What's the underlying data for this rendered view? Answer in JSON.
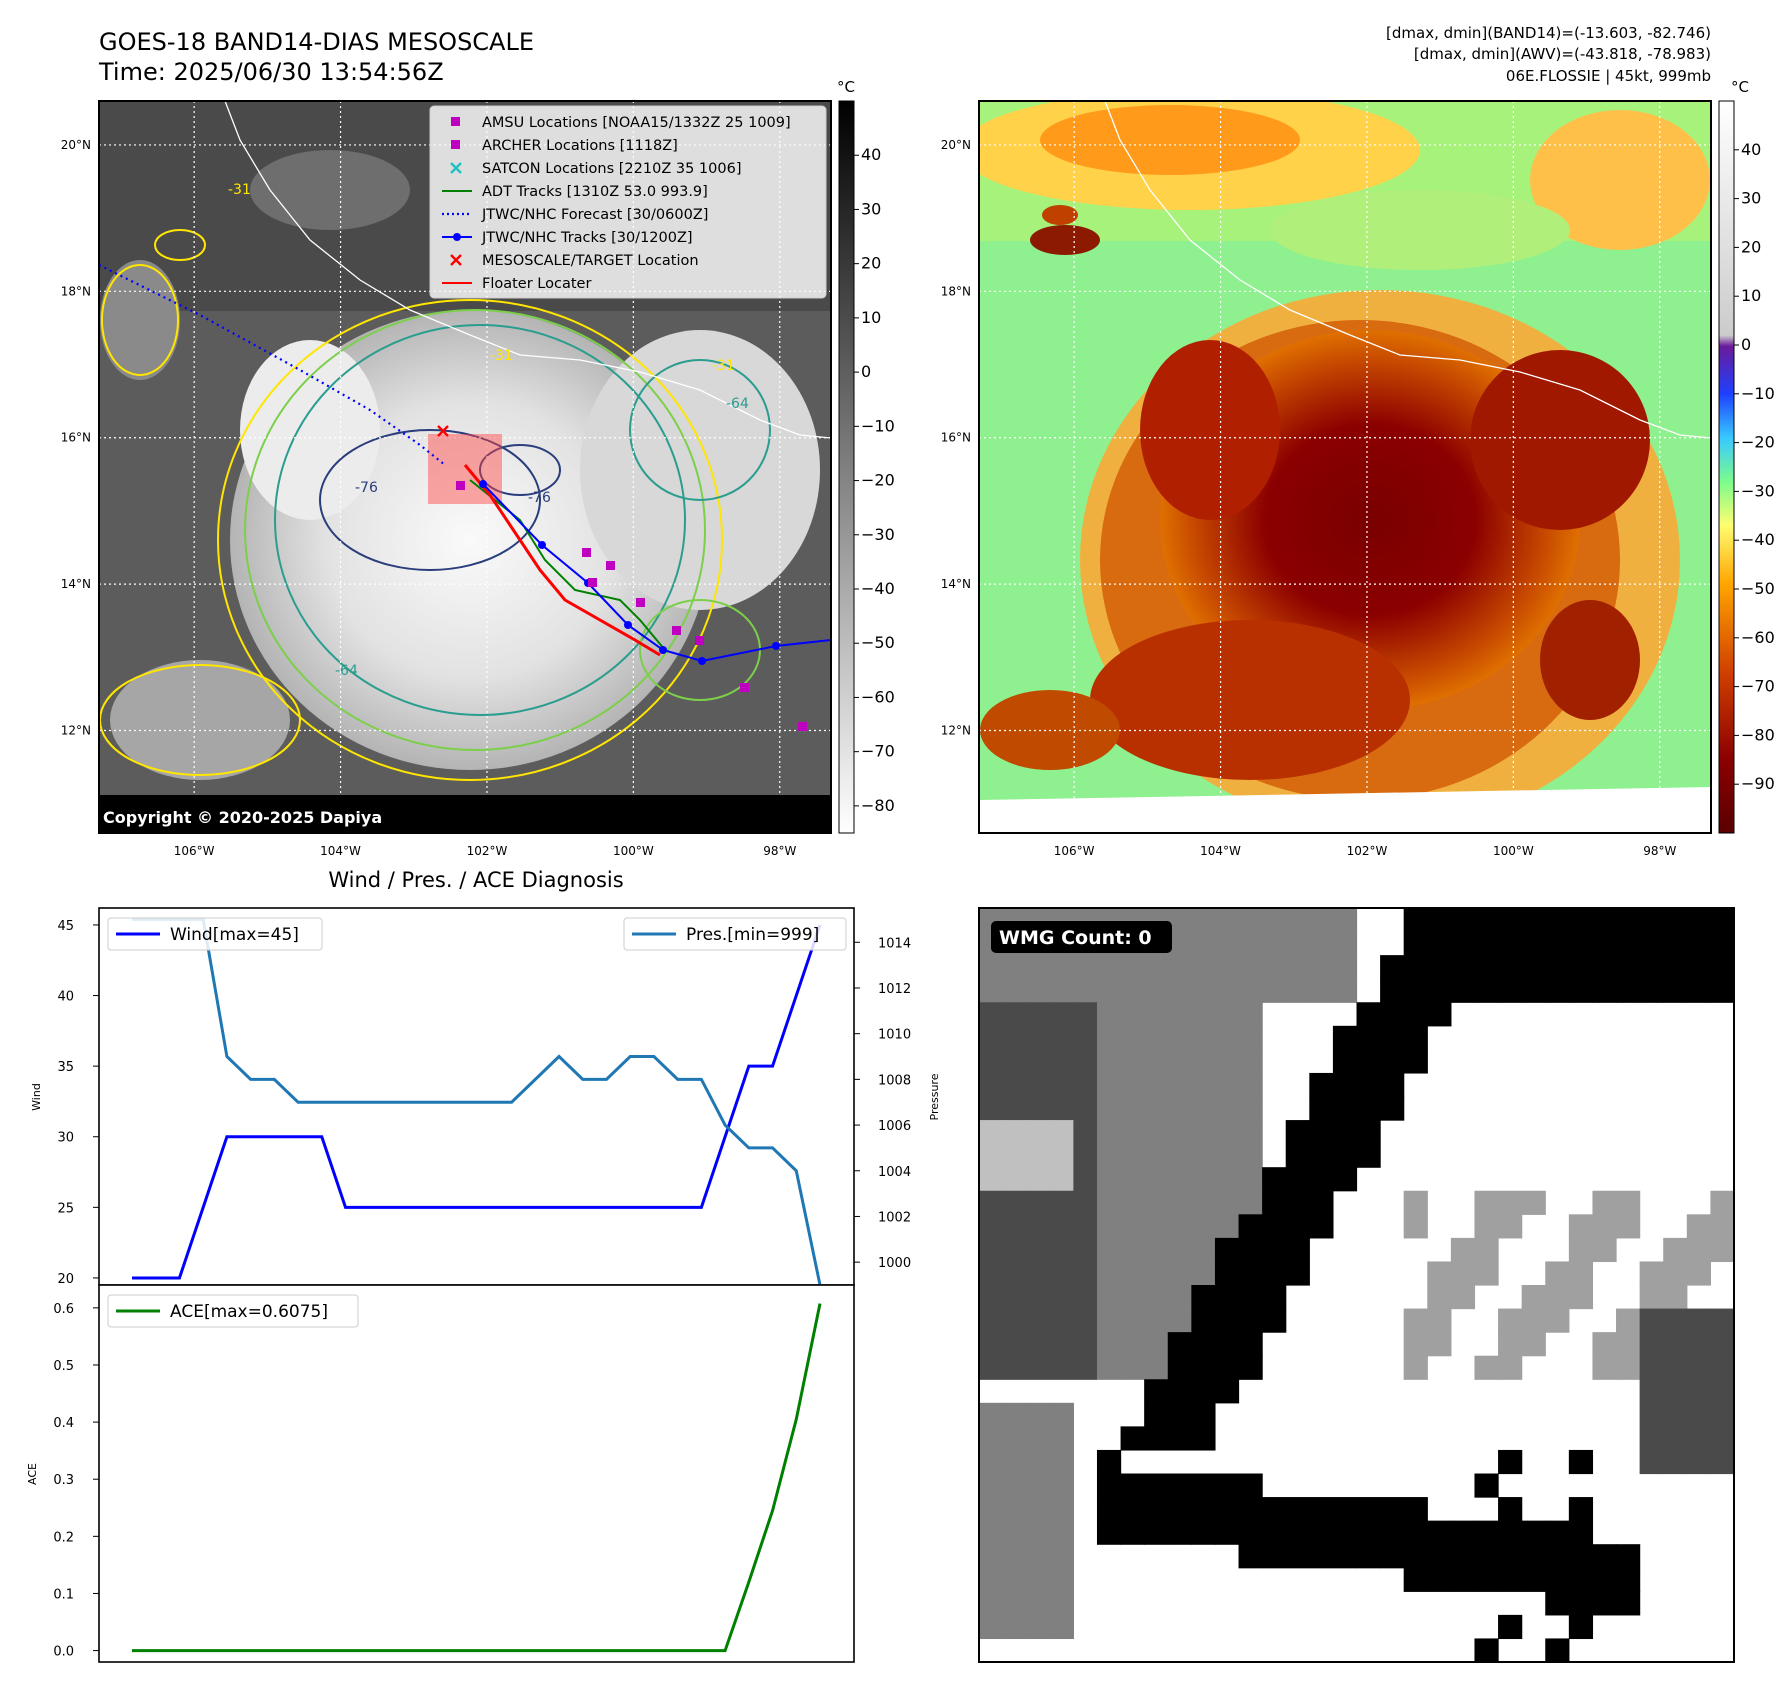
{
  "header": {
    "title_line1": "GOES-18 BAND14-DIAS MESOSCALE",
    "title_line2": "Time: 2025/06/30 13:54:56Z",
    "info_line1": "[dmax, dmin](BAND14)=(-13.603, -82.746)",
    "info_line2": "[dmax, dmin](AWV)=(-43.818, -78.983)",
    "info_line3": "06E.FLOSSIE | 45kt, 999mb"
  },
  "map_axes": {
    "lon_ticks": [
      "106°W",
      "104°W",
      "102°W",
      "100°W",
      "98°W"
    ],
    "lon_values": [
      -106,
      -104,
      -102,
      -100,
      -98
    ],
    "lat_ticks": [
      "20°N",
      "18°N",
      "16°N",
      "14°N",
      "12°N"
    ],
    "lat_values": [
      20,
      18,
      16,
      14,
      12
    ],
    "lon_range": [
      -107.3,
      -97.3
    ],
    "lat_range": [
      10.6,
      20.6
    ]
  },
  "ir_colorbar": {
    "unit": "°C",
    "ticks": [
      "40",
      "30",
      "20",
      "10",
      "0",
      "−10",
      "−20",
      "−30",
      "−40",
      "−50",
      "−60",
      "−70",
      "−80"
    ],
    "range": [
      -85,
      50
    ]
  },
  "wv_colorbar": {
    "unit": "°C",
    "ticks": [
      "40",
      "30",
      "20",
      "10",
      "0",
      "−10",
      "−20",
      "−30",
      "−40",
      "−50",
      "−60",
      "−70",
      "−80",
      "−90"
    ],
    "range": [
      -100,
      50
    ]
  },
  "legend": {
    "items": [
      {
        "label": "AMSU Locations [NOAA15/1332Z 25 1009]",
        "color": "#c000c0",
        "marker": "square"
      },
      {
        "label": "ARCHER Locations [1118Z]",
        "color": "#c000c0",
        "marker": "square"
      },
      {
        "label": "SATCON Locations [2210Z 35 1006]",
        "color": "#20c0c0",
        "marker": "x"
      },
      {
        "label": "ADT Tracks [1310Z 53.0 993.9]",
        "color": "#008000",
        "marker": "line"
      },
      {
        "label": "JTWC/NHC Forecast [30/0600Z]",
        "color": "#0000ff",
        "marker": "dotted"
      },
      {
        "label": "JTWC/NHC Tracks [30/1200Z]",
        "color": "#0000ff",
        "marker": "line-dot"
      },
      {
        "label": "MESOSCALE/TARGET Location",
        "color": "#ff0000",
        "marker": "x"
      },
      {
        "label": "Floater Locater",
        "color": "#ff0000",
        "marker": "line"
      }
    ]
  },
  "copyright": "Copyright © 2020-2025 Dapiya",
  "contour_labels": [
    "-31",
    "-31",
    "-31",
    "-64",
    "-64",
    "-76",
    "-76"
  ],
  "wmg": {
    "label": "WMG Count: 0"
  },
  "chart_data": [
    {
      "type": "line",
      "title": "Wind / Pres. / ACE Diagnosis",
      "ylabel": "Wind",
      "ylim": [
        19.5,
        46.2
      ],
      "yticks": [
        20,
        25,
        30,
        35,
        40,
        45
      ],
      "series": [
        {
          "name": "Wind[max=45]",
          "color": "#0000ff",
          "values": [
            20,
            20,
            20,
            25,
            30,
            30,
            30,
            30,
            30,
            25,
            25,
            25,
            25,
            25,
            25,
            25,
            25,
            25,
            25,
            25,
            25,
            25,
            25,
            25,
            25,
            30,
            35,
            35,
            40,
            45
          ]
        }
      ]
    },
    {
      "type": "line",
      "ylabel": "Pressure",
      "ylim": [
        999,
        1015.5
      ],
      "yticks": [
        1000,
        1002,
        1004,
        1006,
        1008,
        1010,
        1012,
        1014
      ],
      "series": [
        {
          "name": "Pres.[min=999]",
          "color": "#1f77b4",
          "values": [
            1015,
            1015,
            1015,
            1015,
            1009,
            1008,
            1008,
            1007,
            1007,
            1007,
            1007,
            1007,
            1007,
            1007,
            1007,
            1007,
            1007,
            1008,
            1009,
            1008,
            1008,
            1009,
            1009,
            1008,
            1008,
            1006,
            1005,
            1005,
            1004,
            999
          ]
        }
      ]
    },
    {
      "type": "line",
      "ylabel": "ACE",
      "ylim": [
        -0.02,
        0.64
      ],
      "yticks": [
        "0.0",
        "0.1",
        "0.2",
        "0.3",
        "0.4",
        "0.5",
        "0.6"
      ],
      "ytick_values": [
        0,
        0.1,
        0.2,
        0.3,
        0.4,
        0.5,
        0.6
      ],
      "series": [
        {
          "name": "ACE[max=0.6075]",
          "color": "#008000",
          "values": [
            0,
            0,
            0,
            0,
            0,
            0,
            0,
            0,
            0,
            0,
            0,
            0,
            0,
            0,
            0,
            0,
            0,
            0,
            0,
            0,
            0,
            0,
            0,
            0,
            0,
            0,
            0.12,
            0.245,
            0.405,
            0.6075
          ]
        }
      ]
    }
  ]
}
